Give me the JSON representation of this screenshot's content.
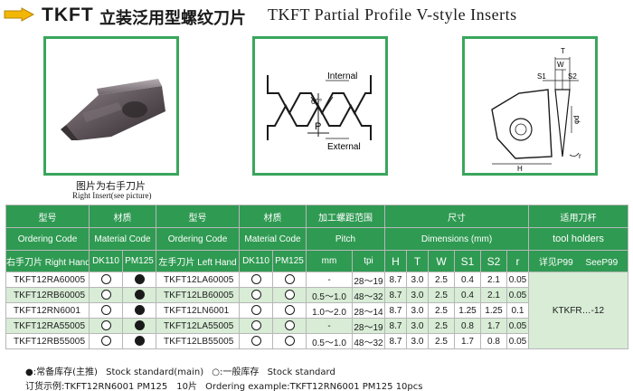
{
  "header": {
    "code": "TKFT",
    "title_cn": "立装泛用型螺纹刀片",
    "title_en": "TKFT Partial Profile V-style Inserts",
    "pointer_icon": "pointing-hand-icon"
  },
  "figures": {
    "fig1": {
      "caption_cn": "图片为右手刀片",
      "caption_en": "Right Insert(see picture)"
    },
    "fig2": {
      "label_internal": "Internal",
      "label_external": "External",
      "label_angle": "60°",
      "label_p": "P"
    },
    "fig3": {
      "label_t": "T",
      "label_w": "W",
      "label_s1": "S1",
      "label_s2": "S2",
      "label_h": "H",
      "label_r": "r",
      "label_d": "φd"
    }
  },
  "table": {
    "h1": {
      "model": "型号",
      "material": "材质",
      "model2": "型号",
      "material2": "材质",
      "thread_range": "加工螺距范围",
      "size": "尺寸",
      "holder": "适用刀杆"
    },
    "h2": {
      "ordering_code": "Ordering Code",
      "material_code": "Material Code",
      "ordering_code2": "Ordering Code",
      "material_code2": "Material Code",
      "pitch": "Pitch",
      "dimensions": "Dimensions (mm)",
      "holder_en": "tool holders"
    },
    "h3": {
      "right_hand": "右手刀片 Right Hand",
      "dk110": "DK110",
      "pm125": "PM125",
      "left_hand": "左手刀片 Left Hand",
      "dk110b": "DK110",
      "pm125b": "PM125",
      "mm": "mm",
      "tpi": "tpi",
      "H": "H",
      "T": "T",
      "W": "W",
      "S1": "S1",
      "S2": "S2",
      "r": "r",
      "see_cn": "详见P99",
      "see_en": "SeeP99"
    },
    "rows": [
      {
        "right": "TKFT12RA60005",
        "r_dk": "open",
        "r_pm": "solid",
        "left": "TKFT12LA60005",
        "l_dk": "open",
        "l_pm": "open",
        "mm": "-",
        "tpi": "28～19",
        "H": "8.7",
        "T": "3.0",
        "W": "2.5",
        "S1": "0.4",
        "S2": "2.1",
        "r": "0.05"
      },
      {
        "right": "TKFT12RB60005",
        "r_dk": "open",
        "r_pm": "solid",
        "left": "TKFT12LB60005",
        "l_dk": "open",
        "l_pm": "open",
        "mm": "0.5～1.0",
        "tpi": "48～32",
        "H": "8.7",
        "T": "3.0",
        "W": "2.5",
        "S1": "0.4",
        "S2": "2.1",
        "r": "0.05"
      },
      {
        "right": "TKFT12RN6001",
        "r_dk": "open",
        "r_pm": "solid",
        "left": "TKFT12LN6001",
        "l_dk": "open",
        "l_pm": "open",
        "mm": "1.0～2.0",
        "tpi": "28～14",
        "H": "8.7",
        "T": "3.0",
        "W": "2.5",
        "S1": "1.25",
        "S2": "1.25",
        "r": "0.1"
      },
      {
        "right": "TKFT12RA55005",
        "r_dk": "open",
        "r_pm": "solid",
        "left": "TKFT12LA55005",
        "l_dk": "open",
        "l_pm": "open",
        "mm": "-",
        "tpi": "28～19",
        "H": "8.7",
        "T": "3.0",
        "W": "2.5",
        "S1": "0.8",
        "S2": "1.7",
        "r": "0.05"
      },
      {
        "right": "TKFT12RB55005",
        "r_dk": "open",
        "r_pm": "solid",
        "left": "TKFT12LB55005",
        "l_dk": "open",
        "l_pm": "open",
        "mm": "0.5～1.0",
        "tpi": "48～32",
        "H": "8.7",
        "T": "3.0",
        "W": "2.5",
        "S1": "1.7",
        "S2": "0.8",
        "r": "0.05"
      }
    ],
    "holder_value": "KTKFR…-12"
  },
  "footer": {
    "legend_solid_cn": "●:常备库存(主推)",
    "legend_solid_en": "Stock standard(main)",
    "legend_open_cn": "○:一般库存",
    "legend_open_en": "Stock standard",
    "order_cn": "订货示例:TKFT12RN6001 PM125　10片",
    "order_en": "Ordering example:TKFT12RN6001 PM125  10pcs"
  },
  "colors": {
    "accent": "#2f9a52",
    "row_shade": "#d8ecd6",
    "frame": "#3aa65c",
    "pointer": "#f2b705"
  }
}
